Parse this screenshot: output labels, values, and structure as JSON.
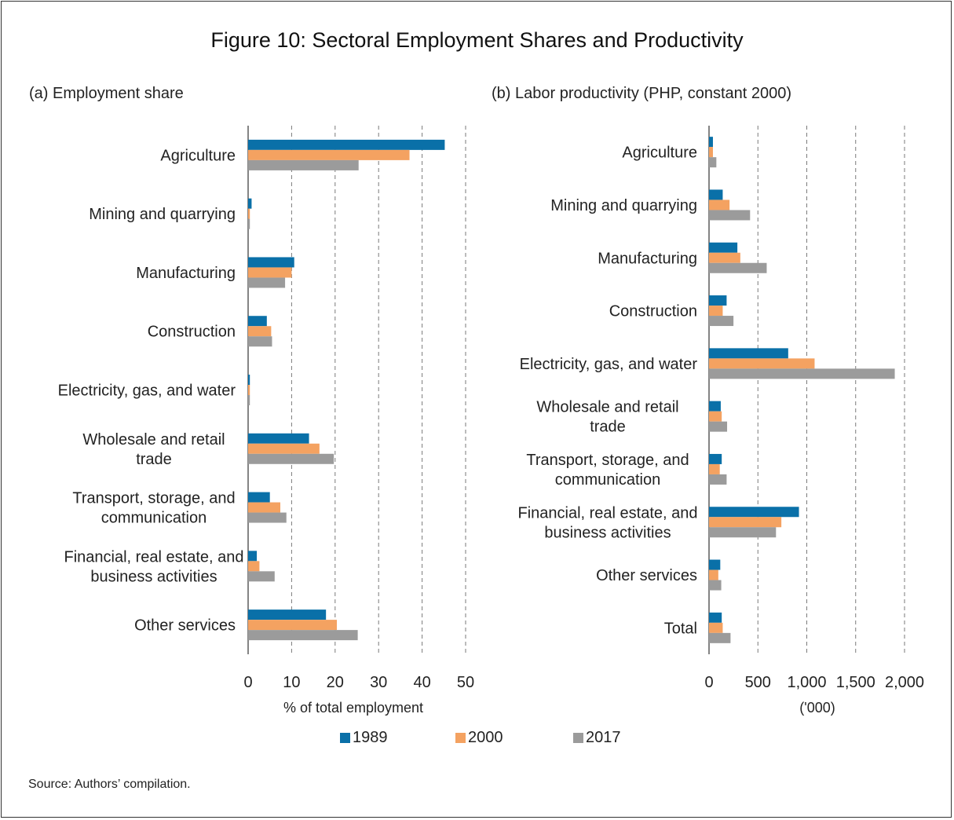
{
  "figure": {
    "title": "Figure 10: Sectoral Employment Shares and Productivity",
    "source": "Source: Authors’ compilation."
  },
  "colors": {
    "s1989": "#0a70a8",
    "s2000": "#f4a261",
    "s2017": "#9b9b9b"
  },
  "legend": [
    {
      "label": "1989",
      "color_key": "s1989"
    },
    {
      "label": "2000",
      "color_key": "s2000"
    },
    {
      "label": "2017",
      "color_key": "s2017"
    }
  ],
  "chart_data": [
    {
      "type": "bar",
      "orientation": "horizontal",
      "title": "(a)  Employment share",
      "xlabel": "% of total employment",
      "xlim": [
        0,
        50
      ],
      "xticks": [
        0,
        10,
        20,
        30,
        40,
        50
      ],
      "xtick_labels": [
        "0",
        "10",
        "20",
        "30",
        "40",
        "50"
      ],
      "grid": "vertical dashed",
      "categories": [
        [
          "Agriculture"
        ],
        [
          "Mining and quarrying"
        ],
        [
          "Manufacturing"
        ],
        [
          "Construction"
        ],
        [
          "Electricity, gas, and water"
        ],
        [
          "Wholesale and retail",
          "trade"
        ],
        [
          "Transport, storage, and",
          "communication"
        ],
        [
          "Financial, real estate, and",
          "business activities"
        ],
        [
          "Other services"
        ]
      ],
      "series": [
        {
          "name": "1989",
          "values": [
            45.2,
            0.8,
            10.6,
            4.3,
            0.4,
            14.0,
            5.0,
            2.0,
            17.9
          ]
        },
        {
          "name": "2000",
          "values": [
            37.1,
            0.4,
            10.0,
            5.3,
            0.4,
            16.4,
            7.4,
            2.6,
            20.4
          ]
        },
        {
          "name": "2017",
          "values": [
            25.4,
            0.4,
            8.5,
            5.5,
            0.4,
            19.7,
            8.8,
            6.1,
            25.2
          ]
        }
      ]
    },
    {
      "type": "bar",
      "orientation": "horizontal",
      "title": "(b)  Labor productivity (PHP, constant 2000)",
      "xlabel": "('000)",
      "xlim": [
        0,
        2000
      ],
      "xticks": [
        0,
        500,
        1000,
        1500,
        2000
      ],
      "xtick_labels": [
        "0",
        "500",
        "1,000",
        "1,500",
        "2,000"
      ],
      "grid": "vertical dashed",
      "categories": [
        [
          "Agriculture"
        ],
        [
          "Mining and quarrying"
        ],
        [
          "Manufacturing"
        ],
        [
          "Construction"
        ],
        [
          "Electricity, gas, and water"
        ],
        [
          "Wholesale and retail",
          "trade"
        ],
        [
          "Transport, storage, and",
          "communication"
        ],
        [
          "Financial, real estate, and",
          "business activities"
        ],
        [
          "Other services"
        ],
        [
          "Total"
        ]
      ],
      "series": [
        {
          "name": "1989",
          "values": [
            40,
            140,
            290,
            180,
            810,
            120,
            130,
            920,
            115,
            130
          ]
        },
        {
          "name": "2000",
          "values": [
            40,
            210,
            320,
            140,
            1080,
            130,
            110,
            740,
            95,
            140
          ]
        },
        {
          "name": "2017",
          "values": [
            75,
            420,
            590,
            250,
            1900,
            185,
            180,
            685,
            125,
            220
          ]
        }
      ]
    }
  ]
}
